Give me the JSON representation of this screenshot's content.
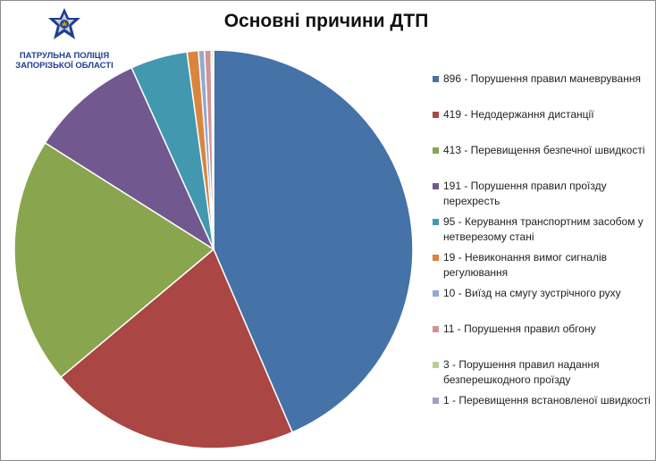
{
  "logo": {
    "line1": "ПАТРУЛЬНА ПОЛІЦІЯ",
    "line2": "ЗАПОРІЗЬКОЇ ОБЛАСТІ",
    "icon": "police-star-icon",
    "colors": {
      "star": "#1b3f8f",
      "star_light": "#c9cde0",
      "trident": "#d4a017"
    }
  },
  "chart_data": {
    "type": "pie",
    "title": "Основні причини ДТП",
    "legend_position": "right",
    "categories": [
      "896 - Порушення  правил маневрування",
      "419 - Недодержання  дистанції",
      "413 - Перевищення  безпечної швидкості",
      "191 - Порушення  правил проїзду перехресть",
      "95 - Керування транспортним засобом у нетверезому  стані",
      "19 - Невиконання вимог сигналів регулювання",
      "10 - Виїзд на смугу зустрічного руху",
      "11 - Порушення  правил обгону",
      "3 - Порушення  правил надання безперешкодного  проїзду",
      "1 - Перевищення  встановленої швидкості"
    ],
    "values": [
      896,
      419,
      413,
      191,
      95,
      19,
      10,
      11,
      3,
      1
    ],
    "colors": [
      "#4572a7",
      "#aa4643",
      "#89a54e",
      "#71588f",
      "#4198af",
      "#db843d",
      "#93a9cf",
      "#d19392",
      "#b9cd96",
      "#a99bbd"
    ]
  }
}
